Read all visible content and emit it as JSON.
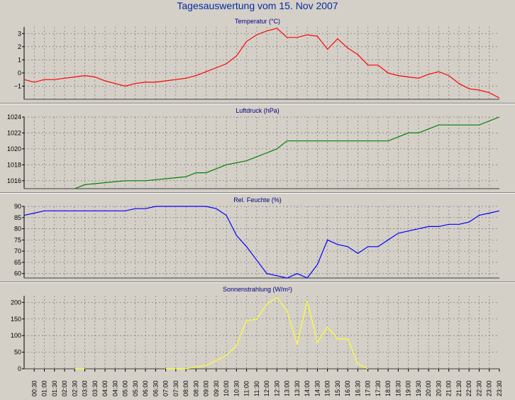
{
  "title": "Tagesauswertung vom 15. Nov 2007",
  "time_labels": [
    "00:30",
    "01:00",
    "01:30",
    "02:00",
    "02:30",
    "03:00",
    "03:30",
    "04:00",
    "04:30",
    "05:00",
    "05:30",
    "06:00",
    "06:30",
    "07:00",
    "07:30",
    "08:00",
    "08:30",
    "09:00",
    "09:30",
    "10:00",
    "10:30",
    "11:00",
    "11:30",
    "12:00",
    "12:30",
    "13:00",
    "13:30",
    "14:00",
    "14:30",
    "15:00",
    "15:30",
    "16:00",
    "16:30",
    "17:00",
    "17:30",
    "18:00",
    "18:30",
    "19:00",
    "19:30",
    "20:00",
    "20:30",
    "21:00",
    "21:30",
    "22:00",
    "22:30",
    "23:00",
    "23:30"
  ],
  "chart_data": [
    {
      "type": "line",
      "title": "Temperatur (°C)",
      "color": "#ff0000",
      "ylim": [
        -2,
        3.5
      ],
      "yticks": [
        3,
        2,
        1,
        0,
        -1
      ],
      "ytick_labels": [
        "3",
        "2",
        "1",
        "0",
        "−1"
      ],
      "grid": true,
      "x": [
        0,
        0.5,
        1,
        1.5,
        2,
        2.5,
        3,
        3.5,
        4,
        4.5,
        5,
        5.5,
        6,
        6.5,
        7,
        7.5,
        8,
        8.5,
        9,
        9.5,
        10,
        10.5,
        11,
        11.5,
        12,
        12.5,
        13,
        13.5,
        14,
        14.5,
        15,
        15.5,
        16,
        16.5,
        17,
        17.5,
        18,
        18.5,
        19,
        19.5,
        20,
        20.5,
        21,
        21.5,
        22,
        22.5,
        23,
        23.5
      ],
      "values": [
        -0.5,
        -0.7,
        -0.5,
        -0.5,
        -0.4,
        -0.3,
        -0.2,
        -0.3,
        -0.6,
        -0.8,
        -1.0,
        -0.8,
        -0.7,
        -0.7,
        -0.6,
        -0.5,
        -0.4,
        -0.2,
        0.1,
        0.4,
        0.7,
        1.3,
        2.4,
        2.9,
        3.2,
        3.4,
        2.7,
        2.7,
        2.9,
        2.8,
        1.8,
        2.6,
        1.9,
        1.4,
        0.6,
        0.6,
        0,
        -0.2,
        -0.3,
        -0.4,
        -0.1,
        0.1,
        -0.2,
        -0.8,
        -1.2,
        -1.3,
        -1.5,
        -1.9
      ]
    },
    {
      "type": "line",
      "title": "Luftdruck (hPa)",
      "color": "#008000",
      "ylim": [
        1015,
        1024
      ],
      "yticks": [
        1024,
        1022,
        1020,
        1018,
        1016
      ],
      "ytick_labels": [
        "1024",
        "1022",
        "1020",
        "1018",
        "1016"
      ],
      "grid": true,
      "x": [
        2.5,
        3,
        5,
        5.5,
        6,
        8,
        8.5,
        9,
        9.5,
        10,
        11,
        11.5,
        12,
        12.5,
        13,
        13.5,
        18,
        18.5,
        19,
        19.5,
        20,
        20.5,
        22.5,
        23,
        23.5
      ],
      "values": [
        1015,
        1015.5,
        1016,
        1016,
        1016,
        1016.5,
        1017,
        1017,
        1017.5,
        1018,
        1018.5,
        1019,
        1019.5,
        1020,
        1021,
        1021,
        1021,
        1021.5,
        1022,
        1022,
        1022.5,
        1023,
        1023,
        1023.5,
        1024
      ]
    },
    {
      "type": "line",
      "title": "Rel. Feuchte (%)",
      "color": "#0000ff",
      "ylim": [
        58,
        90
      ],
      "yticks": [
        90,
        85,
        80,
        75,
        70,
        65,
        60
      ],
      "ytick_labels": [
        "90",
        "85",
        "80",
        "75",
        "70",
        "65",
        "60"
      ],
      "grid": true,
      "x": [
        0,
        0.5,
        1,
        4,
        5,
        5.5,
        6,
        6.5,
        9,
        9.5,
        10,
        10.5,
        11,
        11.5,
        12,
        12.5,
        13,
        13.5,
        14,
        14.5,
        15,
        15.5,
        16,
        16.5,
        17,
        17.5,
        18,
        18.5,
        19,
        19.5,
        20,
        20.5,
        21,
        21.5,
        22,
        22.5,
        23,
        23.5
      ],
      "values": [
        86,
        87,
        88,
        88,
        88,
        89,
        89,
        90,
        90,
        89,
        86,
        77,
        72,
        66,
        60,
        59,
        58,
        60,
        58,
        64,
        75,
        73,
        72,
        69,
        72,
        72,
        75,
        78,
        79,
        80,
        81,
        81,
        82,
        82,
        83,
        86,
        87,
        88
      ]
    },
    {
      "type": "line",
      "title": "Sonnenstrahlung (W/m²)",
      "color": "#ffff33",
      "ylim": [
        0,
        220
      ],
      "yticks": [
        200,
        150,
        100,
        50,
        0
      ],
      "ytick_labels": [
        "200",
        "150",
        "100",
        "50",
        "0"
      ],
      "grid": true,
      "x": [
        7,
        7.5,
        8,
        8.5,
        9,
        9.5,
        10,
        10.5,
        11,
        11.5,
        12,
        12.5,
        13,
        13.5,
        14,
        14.5,
        15,
        15.5,
        16,
        16.5,
        17
      ],
      "values": [
        0,
        0,
        0,
        5,
        10,
        25,
        40,
        70,
        145,
        150,
        195,
        215,
        175,
        75,
        205,
        80,
        125,
        90,
        90,
        15,
        0
      ],
      "note_points": [
        [
          2.5,
          0
        ],
        [
          3,
          0
        ]
      ]
    }
  ]
}
